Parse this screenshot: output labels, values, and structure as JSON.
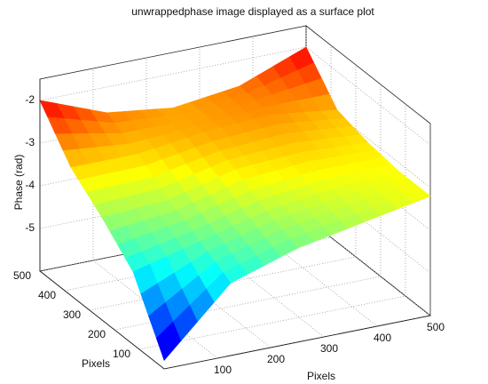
{
  "chart_data": {
    "type": "surface",
    "title": "unwrappedphase image displayed as a surface plot",
    "xlabel": "Pixels",
    "ylabel": "Pixels",
    "zlabel": "Phase (rad)",
    "x": [
      0,
      125,
      250,
      375,
      500
    ],
    "y": [
      0,
      125,
      250,
      375,
      500
    ],
    "z": [
      [
        -5.8,
        -4.3,
        -3.8,
        -3.5,
        -3.2
      ],
      [
        -4.3,
        -3.9,
        -3.5,
        -3.3,
        -3.2
      ],
      [
        -3.6,
        -3.5,
        -3.1,
        -3.0,
        -3.1
      ],
      [
        -3.0,
        -3.0,
        -2.8,
        -2.7,
        -2.9
      ],
      [
        -2.0,
        -2.6,
        -2.8,
        -2.6,
        -2.0
      ]
    ],
    "xlim": [
      0,
      500
    ],
    "ylim": [
      0,
      500
    ],
    "zlim": [
      -6,
      -1.5
    ],
    "xticks": [
      100,
      200,
      300,
      400,
      500
    ],
    "yticks": [
      100,
      200,
      300,
      400,
      500
    ],
    "zticks": [
      -5,
      -4,
      -3,
      -2
    ],
    "grid": true,
    "colormap": "jet"
  }
}
